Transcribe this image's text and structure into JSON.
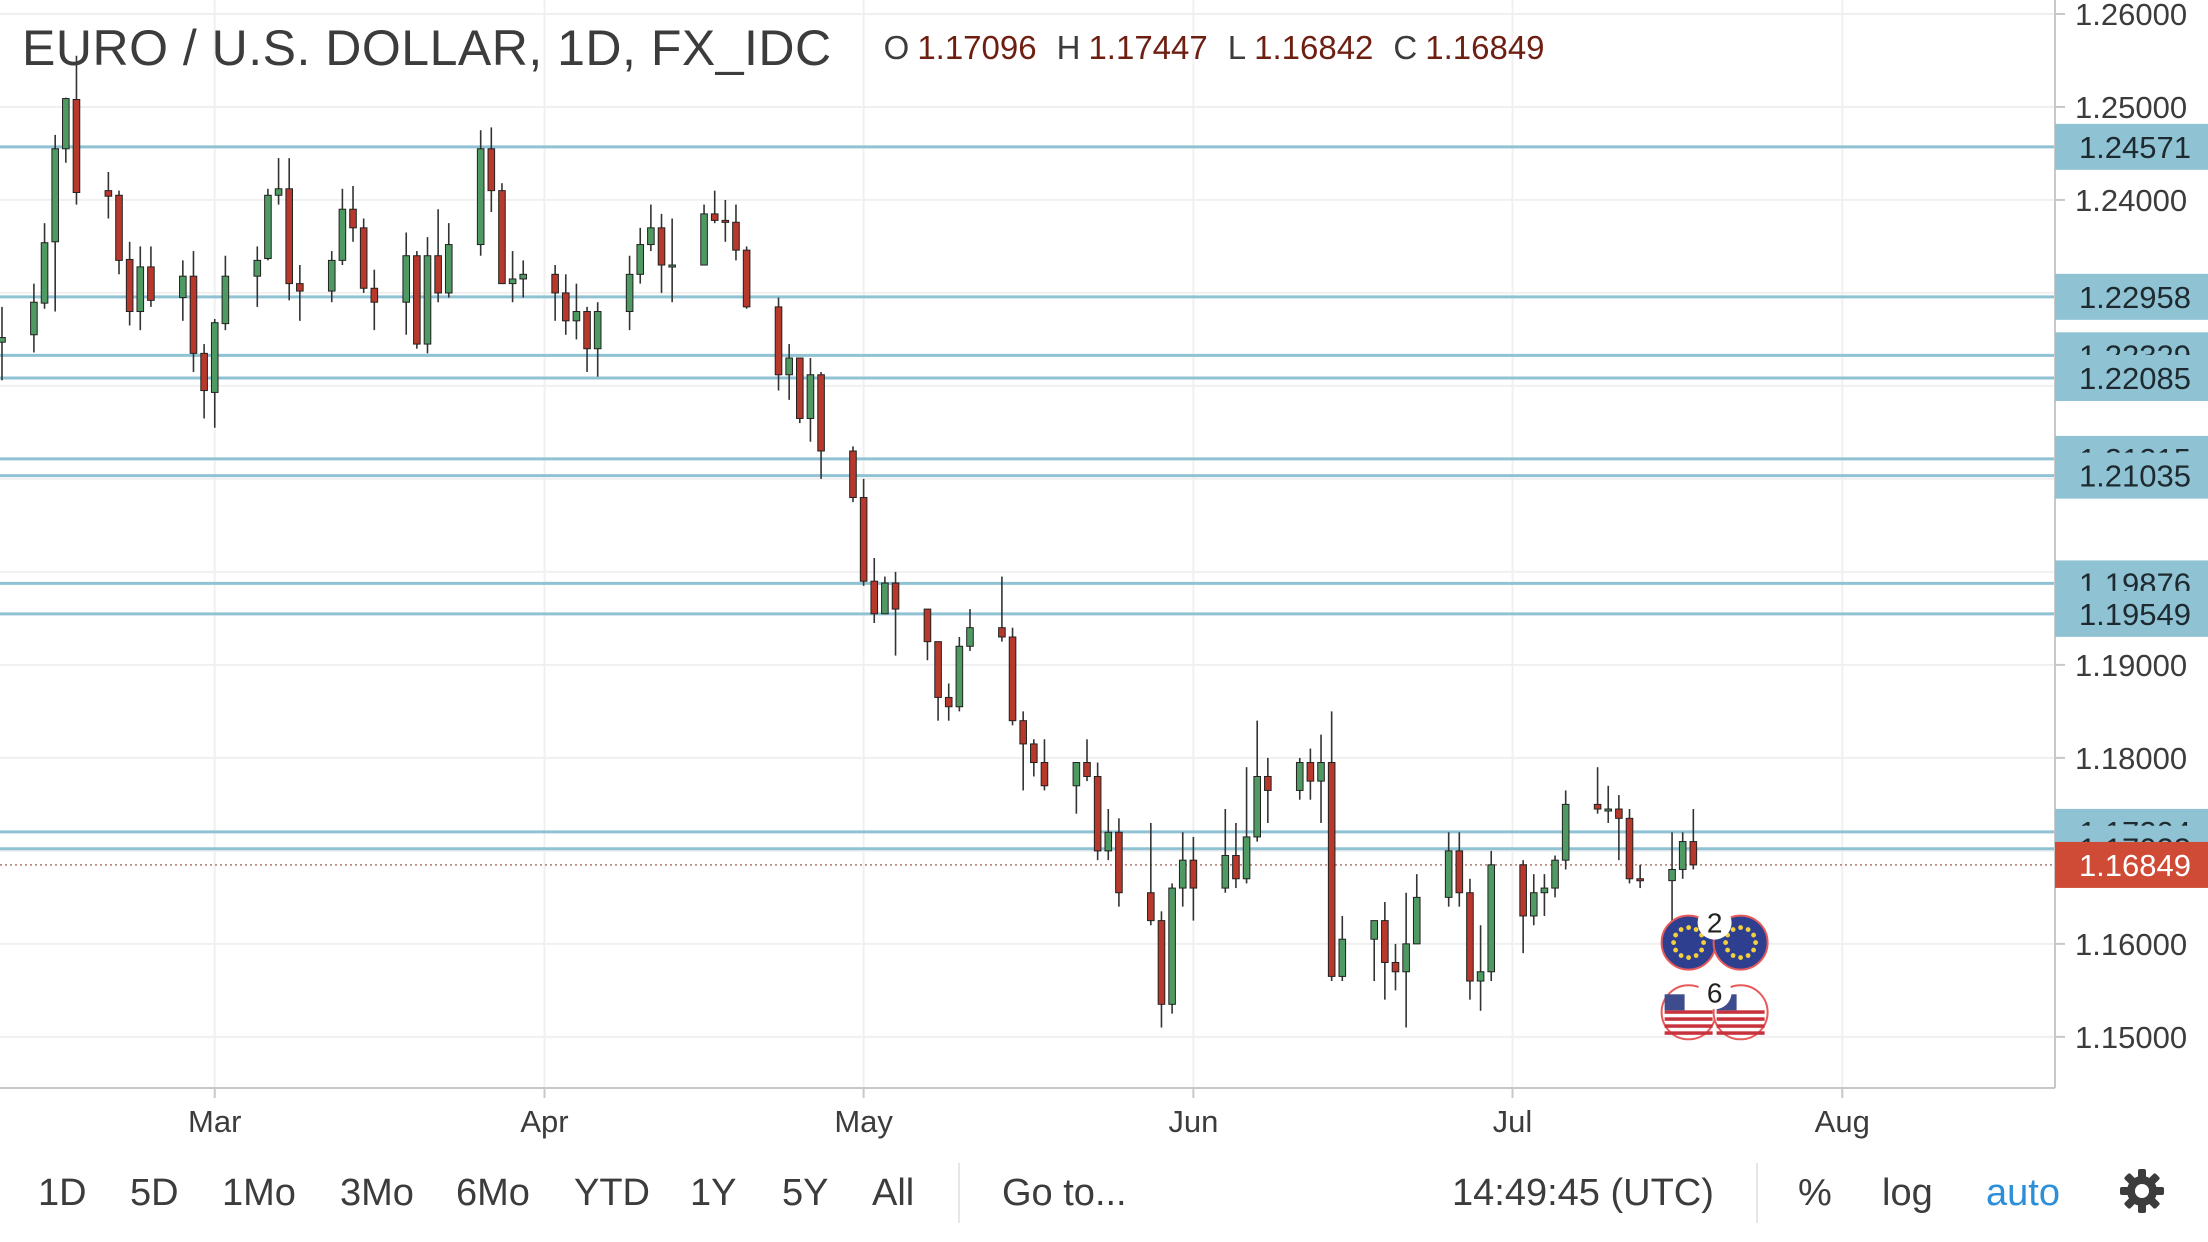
{
  "header": {
    "symbol": "EURO / U.S. DOLLAR, 1D, FX_IDC",
    "open_label": "O",
    "open_value": "1.17096",
    "high_label": "H",
    "high_value": "1.17447",
    "low_label": "L",
    "low_value": "1.16842",
    "close_label": "C",
    "close_value": "1.16849"
  },
  "toolbar": {
    "ranges": [
      "1D",
      "5D",
      "1Mo",
      "3Mo",
      "6Mo",
      "YTD",
      "1Y",
      "5Y",
      "All"
    ],
    "goto": "Go to...",
    "time": "14:49:45 (UTC)",
    "percent": "%",
    "log": "log",
    "auto": "auto",
    "settings_icon": "gear-icon"
  },
  "colors": {
    "up": "#4f9a62",
    "down": "#b8382c",
    "level_line": "#8fc3d4",
    "level_label_bg": "#8fc3d4",
    "price_label_bg": "#cf4b36",
    "grid": "#f0f0f0",
    "axis_text": "#3c3c3c"
  },
  "chart_data": {
    "type": "candlestick",
    "title": "EURO / U.S. DOLLAR, 1D, FX_IDC",
    "interval": "1D",
    "y_axis": {
      "ticks": [
        "1.26000",
        "1.25000",
        "1.24000",
        "1.19000",
        "1.18000",
        "1.16000",
        "1.15000"
      ],
      "range": [
        1.1445,
        1.2615
      ],
      "side": "right"
    },
    "x_axis": {
      "ticks": [
        "Mar",
        "Apr",
        "May",
        "Jun",
        "Jul",
        "Aug"
      ],
      "range": [
        "2018-02-09",
        "2018-08-21"
      ]
    },
    "grid": true,
    "horizontal_levels": [
      "1.24571",
      "1.22958",
      "1.22329",
      "1.22085",
      "1.21215",
      "1.21035",
      "1.19876",
      "1.19549",
      "1.17204",
      "1.17023"
    ],
    "last_price": "1.16849",
    "events": [
      {
        "label": "2",
        "icon": "eu-flag-icon"
      },
      {
        "label": "6",
        "icon": "us-flag-icon"
      }
    ],
    "candles": [
      {
        "date": "2018-02-09",
        "open": 1.2247,
        "high": 1.2285,
        "low": 1.2206,
        "close": 1.2252
      },
      {
        "date": "2018-02-12",
        "open": 1.2255,
        "high": 1.231,
        "low": 1.2236,
        "close": 1.229
      },
      {
        "date": "2018-02-13",
        "open": 1.2289,
        "high": 1.2375,
        "low": 1.2283,
        "close": 1.2354
      },
      {
        "date": "2018-02-14",
        "open": 1.2355,
        "high": 1.247,
        "low": 1.228,
        "close": 1.2455
      },
      {
        "date": "2018-02-15",
        "open": 1.2455,
        "high": 1.251,
        "low": 1.244,
        "close": 1.2509
      },
      {
        "date": "2018-02-16",
        "open": 1.2508,
        "high": 1.2555,
        "low": 1.2395,
        "close": 1.2408
      },
      {
        "date": "2018-02-19",
        "open": 1.241,
        "high": 1.243,
        "low": 1.238,
        "close": 1.2404
      },
      {
        "date": "2018-02-20",
        "open": 1.2405,
        "high": 1.241,
        "low": 1.232,
        "close": 1.2335
      },
      {
        "date": "2018-02-21",
        "open": 1.2336,
        "high": 1.2355,
        "low": 1.2265,
        "close": 1.228
      },
      {
        "date": "2018-02-22",
        "open": 1.228,
        "high": 1.235,
        "low": 1.226,
        "close": 1.2328
      },
      {
        "date": "2018-02-23",
        "open": 1.2328,
        "high": 1.235,
        "low": 1.2285,
        "close": 1.2292
      },
      {
        "date": "2018-02-26",
        "open": 1.2295,
        "high": 1.2335,
        "low": 1.227,
        "close": 1.2318
      },
      {
        "date": "2018-02-27",
        "open": 1.2318,
        "high": 1.2345,
        "low": 1.2215,
        "close": 1.2235
      },
      {
        "date": "2018-02-28",
        "open": 1.2235,
        "high": 1.2245,
        "low": 1.2165,
        "close": 1.2195
      },
      {
        "date": "2018-03-01",
        "open": 1.2193,
        "high": 1.2272,
        "low": 1.2155,
        "close": 1.2268
      },
      {
        "date": "2018-03-02",
        "open": 1.2267,
        "high": 1.234,
        "low": 1.226,
        "close": 1.2318
      },
      {
        "date": "2018-03-05",
        "open": 1.2318,
        "high": 1.235,
        "low": 1.2285,
        "close": 1.2335
      },
      {
        "date": "2018-03-06",
        "open": 1.2337,
        "high": 1.2412,
        "low": 1.2335,
        "close": 1.2405
      },
      {
        "date": "2018-03-07",
        "open": 1.2405,
        "high": 1.2445,
        "low": 1.2395,
        "close": 1.2412
      },
      {
        "date": "2018-03-08",
        "open": 1.2412,
        "high": 1.2445,
        "low": 1.2292,
        "close": 1.231
      },
      {
        "date": "2018-03-09",
        "open": 1.231,
        "high": 1.233,
        "low": 1.227,
        "close": 1.2302
      },
      {
        "date": "2018-03-12",
        "open": 1.2302,
        "high": 1.2345,
        "low": 1.229,
        "close": 1.2335
      },
      {
        "date": "2018-03-13",
        "open": 1.2335,
        "high": 1.2412,
        "low": 1.233,
        "close": 1.239
      },
      {
        "date": "2018-03-14",
        "open": 1.239,
        "high": 1.2415,
        "low": 1.2355,
        "close": 1.237
      },
      {
        "date": "2018-03-15",
        "open": 1.237,
        "high": 1.238,
        "low": 1.23,
        "close": 1.2305
      },
      {
        "date": "2018-03-16",
        "open": 1.2305,
        "high": 1.2325,
        "low": 1.226,
        "close": 1.229
      },
      {
        "date": "2018-03-19",
        "open": 1.229,
        "high": 1.2365,
        "low": 1.2255,
        "close": 1.234
      },
      {
        "date": "2018-03-20",
        "open": 1.234,
        "high": 1.2345,
        "low": 1.224,
        "close": 1.2245
      },
      {
        "date": "2018-03-21",
        "open": 1.2245,
        "high": 1.236,
        "low": 1.2235,
        "close": 1.234
      },
      {
        "date": "2018-03-22",
        "open": 1.234,
        "high": 1.239,
        "low": 1.229,
        "close": 1.23
      },
      {
        "date": "2018-03-23",
        "open": 1.23,
        "high": 1.2375,
        "low": 1.2295,
        "close": 1.2352
      },
      {
        "date": "2018-03-26",
        "open": 1.2352,
        "high": 1.2475,
        "low": 1.234,
        "close": 1.2455
      },
      {
        "date": "2018-03-27",
        "open": 1.2455,
        "high": 1.2478,
        "low": 1.2387,
        "close": 1.241
      },
      {
        "date": "2018-03-28",
        "open": 1.241,
        "high": 1.2418,
        "low": 1.231,
        "close": 1.231
      },
      {
        "date": "2018-03-29",
        "open": 1.231,
        "high": 1.2345,
        "low": 1.229,
        "close": 1.2315
      },
      {
        "date": "2018-03-30",
        "open": 1.2315,
        "high": 1.2335,
        "low": 1.2295,
        "close": 1.232
      },
      {
        "date": "2018-04-02",
        "open": 1.232,
        "high": 1.233,
        "low": 1.227,
        "close": 1.23
      },
      {
        "date": "2018-04-03",
        "open": 1.23,
        "high": 1.232,
        "low": 1.2255,
        "close": 1.227
      },
      {
        "date": "2018-04-04",
        "open": 1.227,
        "high": 1.231,
        "low": 1.225,
        "close": 1.228
      },
      {
        "date": "2018-04-05",
        "open": 1.228,
        "high": 1.2285,
        "low": 1.2215,
        "close": 1.224
      },
      {
        "date": "2018-04-06",
        "open": 1.224,
        "high": 1.229,
        "low": 1.221,
        "close": 1.228
      },
      {
        "date": "2018-04-09",
        "open": 1.228,
        "high": 1.234,
        "low": 1.226,
        "close": 1.232
      },
      {
        "date": "2018-04-10",
        "open": 1.232,
        "high": 1.237,
        "low": 1.231,
        "close": 1.2352
      },
      {
        "date": "2018-04-11",
        "open": 1.2352,
        "high": 1.2395,
        "low": 1.2345,
        "close": 1.237
      },
      {
        "date": "2018-04-12",
        "open": 1.237,
        "high": 1.2385,
        "low": 1.23,
        "close": 1.233
      },
      {
        "date": "2018-04-13",
        "open": 1.233,
        "high": 1.238,
        "low": 1.229,
        "close": 1.233
      },
      {
        "date": "2018-04-16",
        "open": 1.233,
        "high": 1.2395,
        "low": 1.233,
        "close": 1.2385
      },
      {
        "date": "2018-04-17",
        "open": 1.2385,
        "high": 1.241,
        "low": 1.2375,
        "close": 1.2378
      },
      {
        "date": "2018-04-18",
        "open": 1.2378,
        "high": 1.24,
        "low": 1.2355,
        "close": 1.2376
      },
      {
        "date": "2018-04-19",
        "open": 1.2376,
        "high": 1.2395,
        "low": 1.2335,
        "close": 1.2346
      },
      {
        "date": "2018-04-20",
        "open": 1.2346,
        "high": 1.235,
        "low": 1.2283,
        "close": 1.2285
      },
      {
        "date": "2018-04-23",
        "open": 1.2285,
        "high": 1.2295,
        "low": 1.2195,
        "close": 1.2212
      },
      {
        "date": "2018-04-24",
        "open": 1.2212,
        "high": 1.2245,
        "low": 1.2185,
        "close": 1.223
      },
      {
        "date": "2018-04-25",
        "open": 1.223,
        "high": 1.223,
        "low": 1.216,
        "close": 1.2165
      },
      {
        "date": "2018-04-26",
        "open": 1.2165,
        "high": 1.223,
        "low": 1.214,
        "close": 1.2212
      },
      {
        "date": "2018-04-27",
        "open": 1.2212,
        "high": 1.2215,
        "low": 1.21,
        "close": 1.213
      },
      {
        "date": "2018-04-30",
        "open": 1.213,
        "high": 1.2135,
        "low": 1.2075,
        "close": 1.208
      },
      {
        "date": "2018-05-01",
        "open": 1.208,
        "high": 1.21,
        "low": 1.1985,
        "close": 1.199
      },
      {
        "date": "2018-05-02",
        "open": 1.199,
        "high": 1.2015,
        "low": 1.1945,
        "close": 1.1955
      },
      {
        "date": "2018-05-03",
        "open": 1.1955,
        "high": 1.1995,
        "low": 1.1955,
        "close": 1.1988
      },
      {
        "date": "2018-05-04",
        "open": 1.1988,
        "high": 1.2,
        "low": 1.191,
        "close": 1.196
      },
      {
        "date": "2018-05-07",
        "open": 1.196,
        "high": 1.196,
        "low": 1.1905,
        "close": 1.1925
      },
      {
        "date": "2018-05-08",
        "open": 1.1925,
        "high": 1.1925,
        "low": 1.184,
        "close": 1.1865
      },
      {
        "date": "2018-05-09",
        "open": 1.1865,
        "high": 1.188,
        "low": 1.184,
        "close": 1.1855
      },
      {
        "date": "2018-05-10",
        "open": 1.1855,
        "high": 1.193,
        "low": 1.185,
        "close": 1.192
      },
      {
        "date": "2018-05-11",
        "open": 1.192,
        "high": 1.196,
        "low": 1.1915,
        "close": 1.194
      },
      {
        "date": "2018-05-14",
        "open": 1.194,
        "high": 1.1995,
        "low": 1.1925,
        "close": 1.193
      },
      {
        "date": "2018-05-15",
        "open": 1.193,
        "high": 1.194,
        "low": 1.1835,
        "close": 1.184
      },
      {
        "date": "2018-05-16",
        "open": 1.184,
        "high": 1.185,
        "low": 1.1765,
        "close": 1.1815
      },
      {
        "date": "2018-05-17",
        "open": 1.1815,
        "high": 1.182,
        "low": 1.178,
        "close": 1.1795
      },
      {
        "date": "2018-05-18",
        "open": 1.1795,
        "high": 1.182,
        "low": 1.1765,
        "close": 1.177
      },
      {
        "date": "2018-05-21",
        "open": 1.177,
        "high": 1.1795,
        "low": 1.174,
        "close": 1.1795
      },
      {
        "date": "2018-05-22",
        "open": 1.1795,
        "high": 1.182,
        "low": 1.1775,
        "close": 1.178
      },
      {
        "date": "2018-05-23",
        "open": 1.178,
        "high": 1.1795,
        "low": 1.169,
        "close": 1.17
      },
      {
        "date": "2018-05-24",
        "open": 1.17,
        "high": 1.1745,
        "low": 1.169,
        "close": 1.172
      },
      {
        "date": "2018-05-25",
        "open": 1.172,
        "high": 1.1735,
        "low": 1.164,
        "close": 1.1655
      },
      {
        "date": "2018-05-28",
        "open": 1.1655,
        "high": 1.173,
        "low": 1.162,
        "close": 1.1625
      },
      {
        "date": "2018-05-29",
        "open": 1.1625,
        "high": 1.1635,
        "low": 1.151,
        "close": 1.1535
      },
      {
        "date": "2018-05-30",
        "open": 1.1535,
        "high": 1.1665,
        "low": 1.1525,
        "close": 1.166
      },
      {
        "date": "2018-05-31",
        "open": 1.166,
        "high": 1.172,
        "low": 1.164,
        "close": 1.169
      },
      {
        "date": "2018-06-01",
        "open": 1.169,
        "high": 1.1715,
        "low": 1.1625,
        "close": 1.166
      },
      {
        "date": "2018-06-04",
        "open": 1.166,
        "high": 1.1745,
        "low": 1.1655,
        "close": 1.1695
      },
      {
        "date": "2018-06-05",
        "open": 1.1695,
        "high": 1.173,
        "low": 1.166,
        "close": 1.167
      },
      {
        "date": "2018-06-06",
        "open": 1.167,
        "high": 1.179,
        "low": 1.1665,
        "close": 1.1715
      },
      {
        "date": "2018-06-07",
        "open": 1.1715,
        "high": 1.184,
        "low": 1.171,
        "close": 1.178
      },
      {
        "date": "2018-06-08",
        "open": 1.178,
        "high": 1.18,
        "low": 1.173,
        "close": 1.1765
      },
      {
        "date": "2018-06-11",
        "open": 1.1765,
        "high": 1.18,
        "low": 1.1755,
        "close": 1.1795
      },
      {
        "date": "2018-06-12",
        "open": 1.1795,
        "high": 1.181,
        "low": 1.1755,
        "close": 1.1775
      },
      {
        "date": "2018-06-13",
        "open": 1.1775,
        "high": 1.1825,
        "low": 1.173,
        "close": 1.1795
      },
      {
        "date": "2018-06-14",
        "open": 1.1795,
        "high": 1.185,
        "low": 1.156,
        "close": 1.1565
      },
      {
        "date": "2018-06-15",
        "open": 1.1565,
        "high": 1.163,
        "low": 1.156,
        "close": 1.1605
      },
      {
        "date": "2018-06-18",
        "open": 1.1605,
        "high": 1.1625,
        "low": 1.156,
        "close": 1.1625
      },
      {
        "date": "2018-06-19",
        "open": 1.1625,
        "high": 1.1645,
        "low": 1.154,
        "close": 1.158
      },
      {
        "date": "2018-06-20",
        "open": 1.158,
        "high": 1.16,
        "low": 1.155,
        "close": 1.157
      },
      {
        "date": "2018-06-21",
        "open": 1.157,
        "high": 1.1655,
        "low": 1.151,
        "close": 1.16
      },
      {
        "date": "2018-06-22",
        "open": 1.16,
        "high": 1.1675,
        "low": 1.16,
        "close": 1.165
      },
      {
        "date": "2018-06-25",
        "open": 1.165,
        "high": 1.172,
        "low": 1.164,
        "close": 1.17
      },
      {
        "date": "2018-06-26",
        "open": 1.17,
        "high": 1.172,
        "low": 1.164,
        "close": 1.1655
      },
      {
        "date": "2018-06-27",
        "open": 1.1655,
        "high": 1.167,
        "low": 1.154,
        "close": 1.156
      },
      {
        "date": "2018-06-28",
        "open": 1.156,
        "high": 1.162,
        "low": 1.1528,
        "close": 1.157
      },
      {
        "date": "2018-06-29",
        "open": 1.157,
        "high": 1.17,
        "low": 1.156,
        "close": 1.1685
      },
      {
        "date": "2018-07-02",
        "open": 1.1685,
        "high": 1.169,
        "low": 1.159,
        "close": 1.163
      },
      {
        "date": "2018-07-03",
        "open": 1.163,
        "high": 1.1675,
        "low": 1.162,
        "close": 1.1655
      },
      {
        "date": "2018-07-04",
        "open": 1.1655,
        "high": 1.1675,
        "low": 1.163,
        "close": 1.166
      },
      {
        "date": "2018-07-05",
        "open": 1.166,
        "high": 1.1695,
        "low": 1.165,
        "close": 1.169
      },
      {
        "date": "2018-07-06",
        "open": 1.169,
        "high": 1.1765,
        "low": 1.168,
        "close": 1.175
      },
      {
        "date": "2018-07-09",
        "open": 1.175,
        "high": 1.179,
        "low": 1.174,
        "close": 1.1745
      },
      {
        "date": "2018-07-10",
        "open": 1.1745,
        "high": 1.177,
        "low": 1.173,
        "close": 1.1745
      },
      {
        "date": "2018-07-11",
        "open": 1.1745,
        "high": 1.176,
        "low": 1.169,
        "close": 1.1735
      },
      {
        "date": "2018-07-12",
        "open": 1.1735,
        "high": 1.1745,
        "low": 1.1665,
        "close": 1.167
      },
      {
        "date": "2018-07-13",
        "open": 1.167,
        "high": 1.1685,
        "low": 1.166,
        "close": 1.1668
      },
      {
        "date": "2018-07-16",
        "open": 1.1668,
        "high": 1.172,
        "low": 1.162,
        "close": 1.168
      },
      {
        "date": "2018-07-17",
        "open": 1.168,
        "high": 1.172,
        "low": 1.167,
        "close": 1.171
      },
      {
        "date": "2018-07-18",
        "open": 1.171,
        "high": 1.1745,
        "low": 1.168,
        "close": 1.1685
      }
    ]
  }
}
